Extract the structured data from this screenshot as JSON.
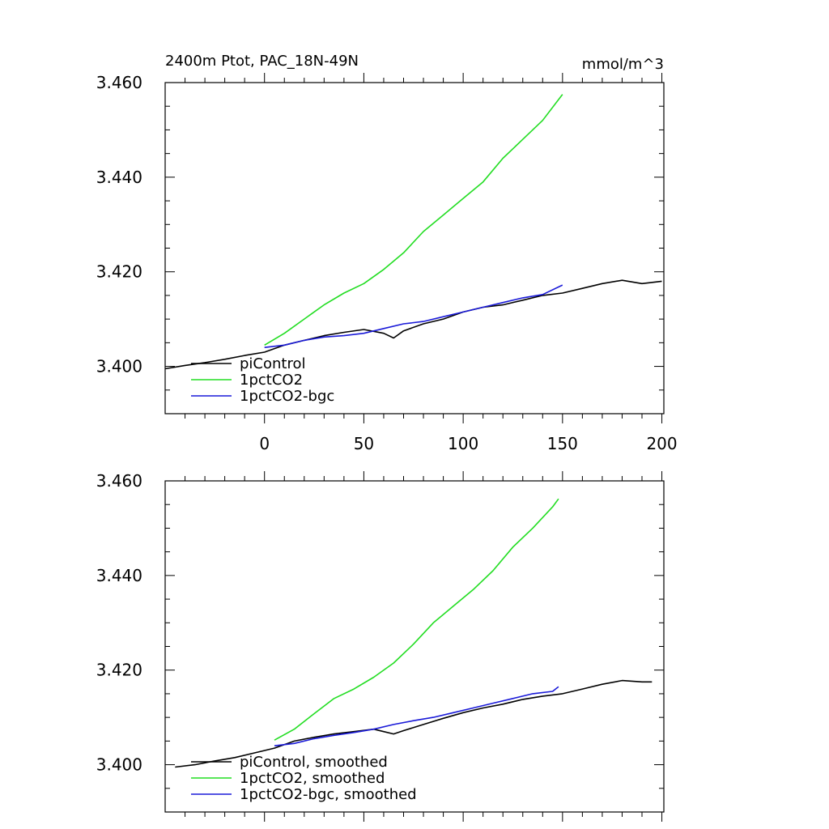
{
  "chart_data": [
    {
      "type": "line",
      "title": "2400m Ptot, PAC_18N-49N",
      "units": "mmol/m^3",
      "xlim": [
        -50,
        201
      ],
      "ylim": [
        3.39,
        3.46
      ],
      "grid": false,
      "legend_position": "bottom-left",
      "x_ticks": [
        0,
        50,
        100,
        150,
        200
      ],
      "x_tick_labels": [
        "0",
        "50",
        "100",
        "150",
        "200"
      ],
      "y_ticks": [
        3.4,
        3.42,
        3.44,
        3.46
      ],
      "y_tick_labels": [
        "3.400",
        "3.420",
        "3.440",
        "3.460"
      ],
      "series": [
        {
          "name": "piControl",
          "color": "#000000",
          "x": [
            -50,
            -40,
            -30,
            -20,
            -10,
            0,
            10,
            20,
            30,
            40,
            50,
            60,
            65,
            70,
            80,
            90,
            100,
            110,
            120,
            130,
            140,
            150,
            160,
            170,
            180,
            190,
            200
          ],
          "y": [
            3.3995,
            3.4002,
            3.4008,
            3.4015,
            3.4023,
            3.403,
            3.4045,
            3.4055,
            3.4065,
            3.4072,
            3.4078,
            3.407,
            3.406,
            3.4075,
            3.409,
            3.41,
            3.4115,
            3.4125,
            3.413,
            3.414,
            3.415,
            3.4155,
            3.4165,
            3.4175,
            3.4182,
            3.4175,
            3.418
          ]
        },
        {
          "name": "1pctCO2",
          "color": "#22dd22",
          "x": [
            0,
            10,
            20,
            30,
            40,
            50,
            60,
            70,
            80,
            90,
            100,
            110,
            120,
            130,
            140,
            150
          ],
          "y": [
            3.4045,
            3.407,
            3.41,
            3.413,
            3.4155,
            3.4175,
            3.4205,
            3.424,
            3.4285,
            3.432,
            3.4355,
            3.439,
            3.444,
            3.448,
            3.452,
            3.4575
          ]
        },
        {
          "name": "1pctCO2-bgc",
          "color": "#1a1ad8",
          "x": [
            0,
            10,
            20,
            30,
            40,
            50,
            60,
            70,
            80,
            90,
            100,
            110,
            120,
            130,
            140,
            150
          ],
          "y": [
            3.404,
            3.4045,
            3.4055,
            3.4062,
            3.4065,
            3.407,
            3.408,
            3.409,
            3.4095,
            3.4105,
            3.4115,
            3.4125,
            3.4135,
            3.4145,
            3.4152,
            3.4172
          ]
        }
      ]
    },
    {
      "type": "line",
      "xlim": [
        -50,
        201
      ],
      "ylim": [
        3.39,
        3.46
      ],
      "grid": false,
      "legend_position": "bottom-left",
      "x_ticks": [
        0,
        50,
        100,
        150,
        200
      ],
      "y_ticks": [
        3.4,
        3.42,
        3.44,
        3.46
      ],
      "y_tick_labels": [
        "3.400",
        "3.420",
        "3.440",
        "3.460"
      ],
      "series": [
        {
          "name": "piControl, smoothed",
          "color": "#000000",
          "x": [
            -45,
            -35,
            -25,
            -15,
            -5,
            5,
            15,
            25,
            35,
            45,
            55,
            60,
            65,
            70,
            80,
            90,
            100,
            110,
            120,
            130,
            140,
            150,
            160,
            170,
            180,
            190,
            195
          ],
          "y": [
            3.3995,
            3.4,
            3.4008,
            3.4015,
            3.4025,
            3.4035,
            3.405,
            3.4058,
            3.4065,
            3.407,
            3.4075,
            3.407,
            3.4065,
            3.4072,
            3.4085,
            3.4098,
            3.411,
            3.412,
            3.4128,
            3.4138,
            3.4145,
            3.415,
            3.416,
            3.417,
            3.4178,
            3.4175,
            3.4175
          ]
        },
        {
          "name": "1pctCO2, smoothed",
          "color": "#22dd22",
          "x": [
            5,
            15,
            25,
            35,
            45,
            55,
            65,
            75,
            85,
            95,
            105,
            115,
            125,
            135,
            145,
            148
          ],
          "y": [
            3.4052,
            3.4075,
            3.4108,
            3.414,
            3.416,
            3.4185,
            3.4215,
            3.4255,
            3.43,
            3.4335,
            3.437,
            3.441,
            3.446,
            3.45,
            3.4545,
            3.4562
          ]
        },
        {
          "name": "1pctCO2-bgc, smoothed",
          "color": "#1a1ad8",
          "x": [
            5,
            15,
            25,
            35,
            45,
            55,
            65,
            75,
            85,
            95,
            105,
            115,
            125,
            135,
            145,
            148
          ],
          "y": [
            3.404,
            3.4045,
            3.4055,
            3.4062,
            3.4068,
            3.4075,
            3.4085,
            3.4093,
            3.41,
            3.411,
            3.412,
            3.413,
            3.414,
            3.415,
            3.4155,
            3.4165
          ]
        }
      ]
    }
  ]
}
